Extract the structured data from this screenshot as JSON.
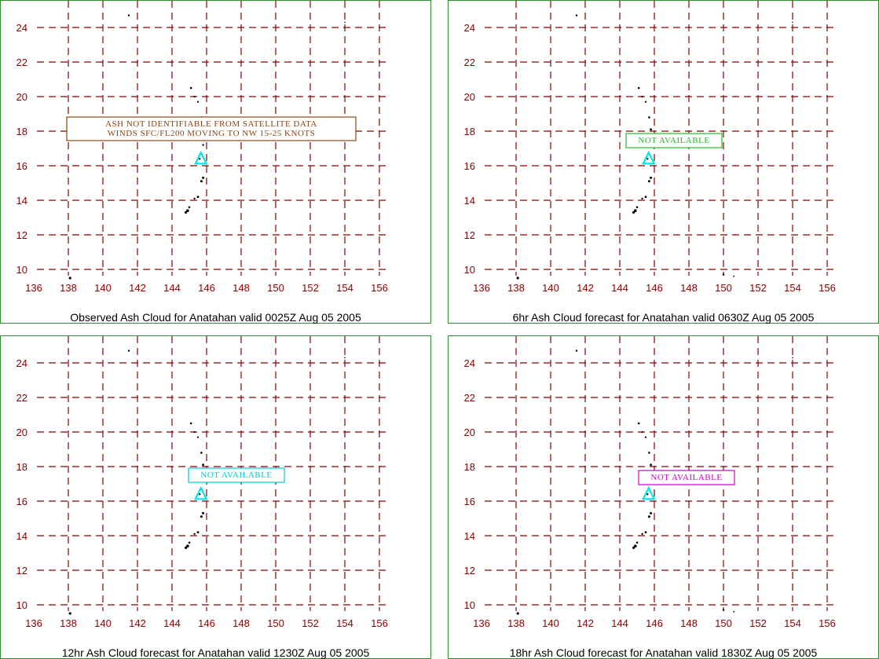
{
  "x_ticks": [
    "136",
    "138",
    "140",
    "142",
    "144",
    "146",
    "148",
    "150",
    "152",
    "154",
    "156"
  ],
  "y_ticks": [
    "10",
    "12",
    "14",
    "16",
    "18",
    "20",
    "22",
    "24"
  ],
  "colors": {
    "frame": "#2e8b2e",
    "grid": "#8b0000",
    "volcano": "#00e5e5",
    "land": "#000000"
  },
  "panels": [
    {
      "caption": "Observed Ash Cloud for Anatahan valid 0025Z Aug 05 2005",
      "box_lines": [
        "ASH NOT IDENTIFIABLE FROM SATELLITE DATA",
        "WINDS SFC/FL200 MOVING TO NW 15-25 KNOTS"
      ],
      "box_color": "#8b4513"
    },
    {
      "caption": "6hr Ash Cloud forecast for Anatahan valid 0630Z Aug 05 2005",
      "box_lines": [
        "NOT AVAILABLE"
      ],
      "box_color": "#22bb22"
    },
    {
      "caption": "12hr Ash Cloud forecast for Anatahan valid 1230Z Aug 05 2005",
      "box_lines": [
        "NOT AVAILABLE"
      ],
      "box_color": "#00cccc"
    },
    {
      "caption": "18hr Ash Cloud forecast for Anatahan valid 1830Z Aug 05 2005",
      "box_lines": [
        "NOT AVAILABLE"
      ],
      "box_color": "#cc00cc"
    }
  ]
}
